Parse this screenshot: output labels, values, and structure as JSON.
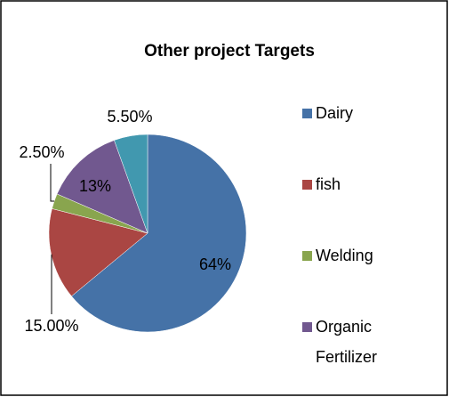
{
  "chart_data": {
    "type": "pie",
    "title": "Other project Targets",
    "categories": [
      "Dairy",
      "fish",
      "Welding",
      "Organic Fertilizer",
      null
    ],
    "values": [
      64,
      15,
      2.5,
      13,
      5.5
    ],
    "value_labels": [
      "64%",
      "15.00%",
      "2.50%",
      "13%",
      "5.50%"
    ],
    "colors": [
      "#4572a7",
      "#aa4643",
      "#89a54e",
      "#71588f",
      "#4198af"
    ],
    "legend": "right"
  }
}
